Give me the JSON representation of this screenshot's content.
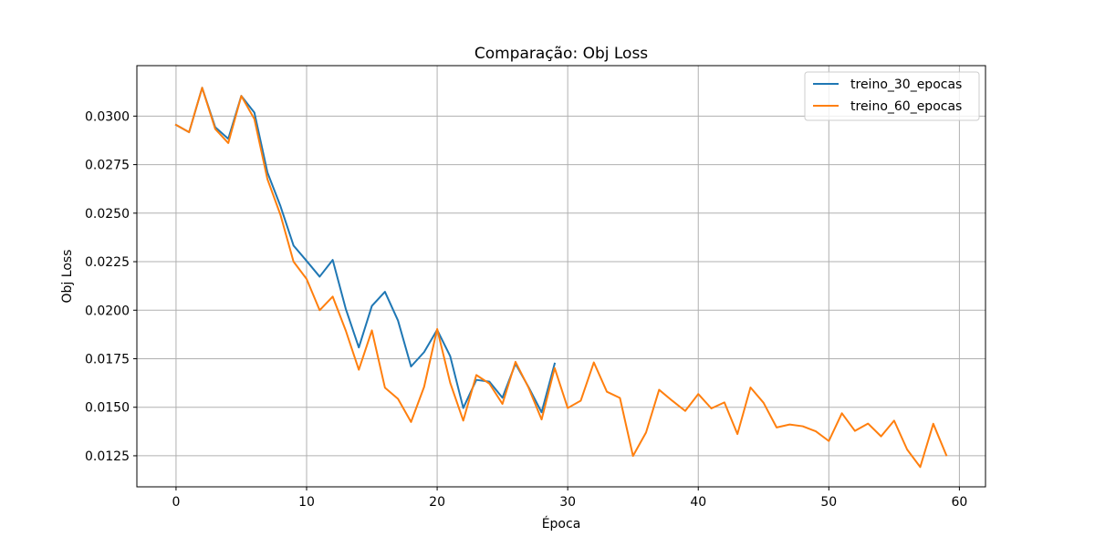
{
  "chart_data": {
    "type": "line",
    "title": "Comparação: Obj Loss",
    "xlabel": "Época",
    "ylabel": "Obj Loss",
    "xlim": [
      -3,
      62
    ],
    "ylim": [
      0.0109,
      0.0326
    ],
    "xticks": [
      0,
      10,
      20,
      30,
      40,
      50,
      60
    ],
    "xtick_labels": [
      "0",
      "10",
      "20",
      "30",
      "40",
      "50",
      "60"
    ],
    "yticks": [
      0.0125,
      0.015,
      0.0175,
      0.02,
      0.0225,
      0.025,
      0.0275,
      0.03
    ],
    "ytick_labels": [
      "0.0125",
      "0.0150",
      "0.0175",
      "0.0200",
      "0.0225",
      "0.0250",
      "0.0275",
      "0.0300"
    ],
    "grid": true,
    "legend_position": "top-right",
    "series": [
      {
        "name": "treino_30_epocas",
        "color": "#1f77b4",
        "x": [
          0,
          1,
          2,
          3,
          4,
          5,
          6,
          7,
          8,
          9,
          10,
          11,
          12,
          13,
          14,
          15,
          16,
          17,
          18,
          19,
          20,
          21,
          22,
          23,
          24,
          25,
          26,
          27,
          28,
          29
        ],
        "y": [
          0.02955,
          0.02917,
          0.03146,
          0.02943,
          0.02883,
          0.03104,
          0.03018,
          0.0271,
          0.02536,
          0.02333,
          0.02254,
          0.02173,
          0.02259,
          0.02007,
          0.01808,
          0.02022,
          0.02095,
          0.01947,
          0.0171,
          0.01784,
          0.01899,
          0.01763,
          0.01496,
          0.01641,
          0.01632,
          0.01549,
          0.01724,
          0.01604,
          0.01474,
          0.01725
        ]
      },
      {
        "name": "treino_60_epocas",
        "color": "#ff7f0e",
        "x": [
          0,
          1,
          2,
          3,
          4,
          5,
          6,
          7,
          8,
          9,
          10,
          11,
          12,
          13,
          14,
          15,
          16,
          17,
          18,
          19,
          20,
          21,
          22,
          23,
          24,
          25,
          26,
          27,
          28,
          29,
          30,
          31,
          32,
          33,
          34,
          35,
          36,
          37,
          38,
          39,
          40,
          41,
          42,
          43,
          44,
          45,
          46,
          47,
          48,
          49,
          50,
          51,
          52,
          53,
          54,
          55,
          56,
          57,
          58,
          59
        ],
        "y": [
          0.02955,
          0.02917,
          0.03146,
          0.02934,
          0.02861,
          0.03104,
          0.02985,
          0.02675,
          0.02491,
          0.0225,
          0.02161,
          0.02,
          0.0207,
          0.01895,
          0.01693,
          0.01896,
          0.01601,
          0.01543,
          0.01424,
          0.01605,
          0.01903,
          0.01626,
          0.01431,
          0.01666,
          0.01622,
          0.01517,
          0.01734,
          0.01601,
          0.01437,
          0.01702,
          0.01496,
          0.01534,
          0.01731,
          0.0158,
          0.01548,
          0.01249,
          0.0137,
          0.0159,
          0.01534,
          0.01481,
          0.01568,
          0.01494,
          0.01525,
          0.01362,
          0.01602,
          0.01523,
          0.01396,
          0.01411,
          0.01402,
          0.01376,
          0.01326,
          0.01469,
          0.01378,
          0.01416,
          0.0135,
          0.01431,
          0.01282,
          0.01192,
          0.01415,
          0.01253
        ]
      }
    ]
  }
}
